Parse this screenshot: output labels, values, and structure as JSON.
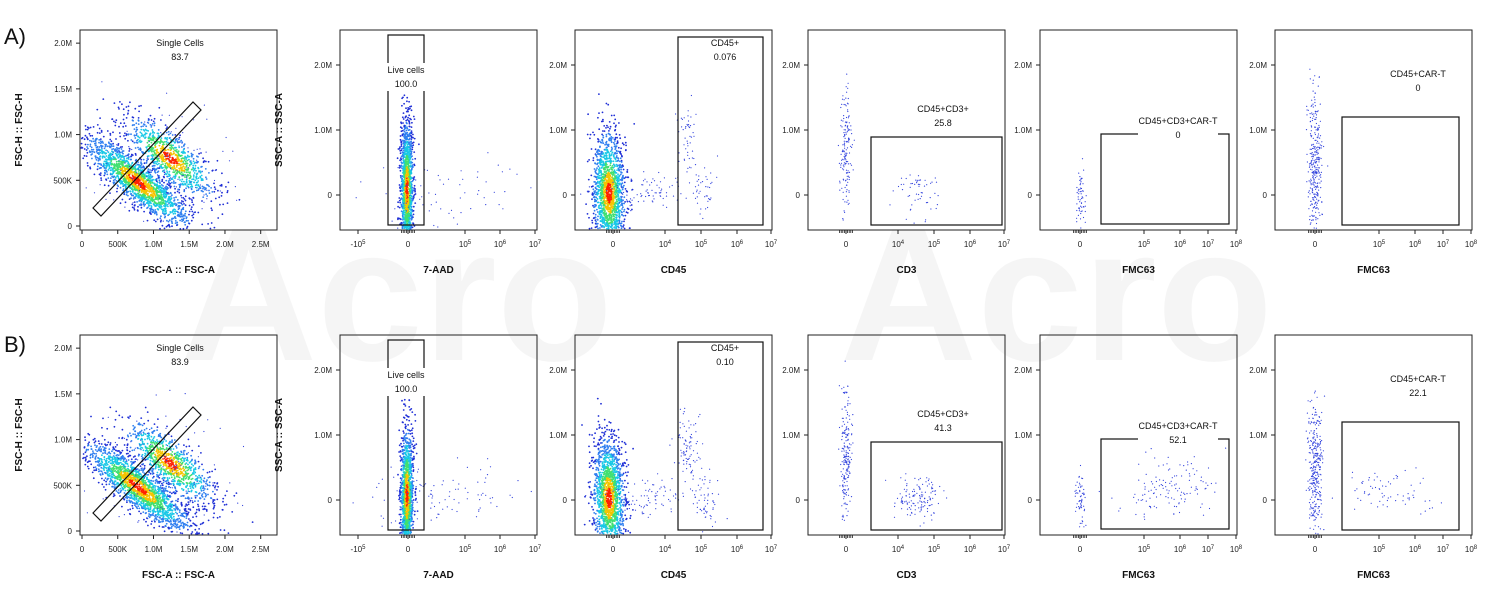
{
  "chart_data": [
    {
      "row": "A)",
      "type": "scatter",
      "plot": "fsc",
      "xlabel": "FSC-A :: FSC-A",
      "ylabel": "FSC-H :: FSC-H",
      "xticks": [
        "0",
        "500K",
        "1.0M",
        "1.5M",
        "2.0M",
        "2.5M"
      ],
      "yticks": [
        "0",
        "500K",
        "1.0M",
        "1.5M",
        "2.0M"
      ],
      "xlim": [
        0,
        2700000
      ],
      "ylim": [
        0,
        2100000
      ],
      "gate": {
        "name": "Single Cells",
        "value": "83.7"
      }
    },
    {
      "row": "A)",
      "type": "scatter",
      "plot": "live",
      "xlabel": "7-AAD",
      "ylabel": "SSC-A :: SSC-A",
      "xticks": [
        "-10^5",
        "0",
        "10^5",
        "10^6",
        "10^7"
      ],
      "yticks": [
        "0",
        "1.0M",
        "2.0M"
      ],
      "gate": {
        "name": "Live cells",
        "value": "100.0"
      }
    },
    {
      "row": "A)",
      "type": "scatter",
      "plot": "cd45",
      "xlabel": "CD45",
      "ylabel": "",
      "xticks": [
        "0",
        "10^4",
        "10^5",
        "10^6",
        "10^7"
      ],
      "yticks": [
        "0",
        "1.0M",
        "2.0M"
      ],
      "gate": {
        "name": "CD45+",
        "value": "0.076"
      }
    },
    {
      "row": "A)",
      "type": "scatter",
      "plot": "cd3",
      "xlabel": "CD3",
      "ylabel": "",
      "xticks": [
        "0",
        "10^4",
        "10^5",
        "10^6",
        "10^7"
      ],
      "yticks": [
        "0",
        "1.0M",
        "2.0M"
      ],
      "gate": {
        "name": "CD45+CD3+",
        "value": "25.8"
      }
    },
    {
      "row": "A)",
      "type": "scatter",
      "plot": "fmc1",
      "xlabel": "FMC63",
      "ylabel": "",
      "xticks": [
        "0",
        "10^5",
        "10^6",
        "10^7",
        "10^8"
      ],
      "yticks": [
        "0",
        "1.0M",
        "2.0M"
      ],
      "gate": {
        "name": "CD45+CD3+CAR-T",
        "value": "0"
      }
    },
    {
      "row": "A)",
      "type": "scatter",
      "plot": "fmc2",
      "xlabel": "FMC63",
      "ylabel": "",
      "xticks": [
        "0",
        "10^5",
        "10^6",
        "10^7",
        "10^8"
      ],
      "yticks": [
        "0",
        "1.0M",
        "2.0M"
      ],
      "gate": {
        "name": "CD45+CAR-T",
        "value": "0"
      }
    },
    {
      "row": "B)",
      "type": "scatter",
      "plot": "fsc",
      "xlabel": "FSC-A :: FSC-A",
      "ylabel": "FSC-H :: FSC-H",
      "xticks": [
        "0",
        "500K",
        "1.0M",
        "1.5M",
        "2.0M",
        "2.5M"
      ],
      "yticks": [
        "0",
        "500K",
        "1.0M",
        "1.5M",
        "2.0M"
      ],
      "xlim": [
        0,
        2700000
      ],
      "ylim": [
        0,
        2100000
      ],
      "gate": {
        "name": "Single Cells",
        "value": "83.9"
      }
    },
    {
      "row": "B)",
      "type": "scatter",
      "plot": "live",
      "xlabel": "7-AAD",
      "ylabel": "SSC-A :: SSC-A",
      "xticks": [
        "-10^5",
        "0",
        "10^5",
        "10^6",
        "10^7"
      ],
      "yticks": [
        "0",
        "1.0M",
        "2.0M"
      ],
      "gate": {
        "name": "Live cells",
        "value": "100.0"
      }
    },
    {
      "row": "B)",
      "type": "scatter",
      "plot": "cd45",
      "xlabel": "CD45",
      "ylabel": "",
      "xticks": [
        "0",
        "10^4",
        "10^5",
        "10^6",
        "10^7"
      ],
      "yticks": [
        "0",
        "1.0M",
        "2.0M"
      ],
      "gate": {
        "name": "CD45+",
        "value": "0.10"
      }
    },
    {
      "row": "B)",
      "type": "scatter",
      "plot": "cd3",
      "xlabel": "CD3",
      "ylabel": "",
      "xticks": [
        "0",
        "10^4",
        "10^5",
        "10^6",
        "10^7"
      ],
      "yticks": [
        "0",
        "1.0M",
        "2.0M"
      ],
      "gate": {
        "name": "CD45+CD3+",
        "value": "41.3"
      }
    },
    {
      "row": "B)",
      "type": "scatter",
      "plot": "fmc1",
      "xlabel": "FMC63",
      "ylabel": "",
      "xticks": [
        "0",
        "10^5",
        "10^6",
        "10^7",
        "10^8"
      ],
      "yticks": [
        "0",
        "1.0M",
        "2.0M"
      ],
      "gate": {
        "name": "CD45+CD3+CAR-T",
        "value": "52.1"
      }
    },
    {
      "row": "B)",
      "type": "scatter",
      "plot": "fmc2",
      "xlabel": "FMC63",
      "ylabel": "",
      "xticks": [
        "0",
        "10^5",
        "10^6",
        "10^7",
        "10^8"
      ],
      "yticks": [
        "0",
        "1.0M",
        "2.0M"
      ],
      "gate": {
        "name": "CD45+CAR-T",
        "value": "22.1"
      }
    }
  ],
  "row_labels": [
    "A)",
    "B)"
  ],
  "watermark": [
    "Acro",
    "Acro"
  ],
  "colors": {
    "density_low": "#1f2fd6",
    "density_mid": "#19c8e6",
    "density_high": "#ff2200",
    "sparse": "#3344dd"
  }
}
